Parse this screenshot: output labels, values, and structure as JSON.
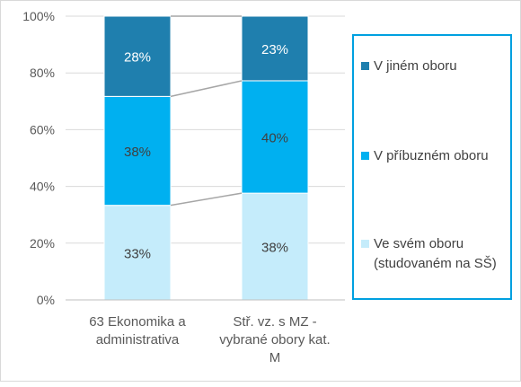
{
  "chart_data": {
    "type": "bar",
    "stacked": "percent",
    "categories": [
      [
        "63 Ekonomika a",
        "administrativa"
      ],
      [
        "Stř. vz. s MZ -",
        "vybrané obory kat.",
        "M"
      ]
    ],
    "series": [
      {
        "name": "Ve svém oboru (studovaném na SŠ)",
        "legend_lines": [
          "Ve svém oboru",
          "(studovaném na SŠ)"
        ],
        "values": [
          33,
          38
        ],
        "labels": [
          "33%",
          "38%"
        ],
        "color": "#c5ecfb"
      },
      {
        "name": "V příbuzném oboru",
        "legend_lines": [
          "V příbuzném oboru"
        ],
        "values": [
          38,
          40
        ],
        "labels": [
          "38%",
          "40%"
        ],
        "color": "#00b0f0"
      },
      {
        "name": "V jiném oboru",
        "legend_lines": [
          "V jiném oboru"
        ],
        "values": [
          28,
          23
        ],
        "labels": [
          "28%",
          "23%"
        ],
        "color": "#1f7fae"
      }
    ],
    "ylim": [
      0,
      100
    ],
    "yticks": [
      "0%",
      "20%",
      "40%",
      "60%",
      "80%",
      "100%"
    ],
    "series_lines": true,
    "legend_position": "right",
    "legend_order": [
      "V jiném oboru",
      "V příbuzném oboru",
      "Ve svém oboru (studovaném na SŠ)"
    ],
    "legend_border_color": "#00a0e0",
    "label_color_light": "#404040",
    "label_color_dark": "#ffffff"
  }
}
